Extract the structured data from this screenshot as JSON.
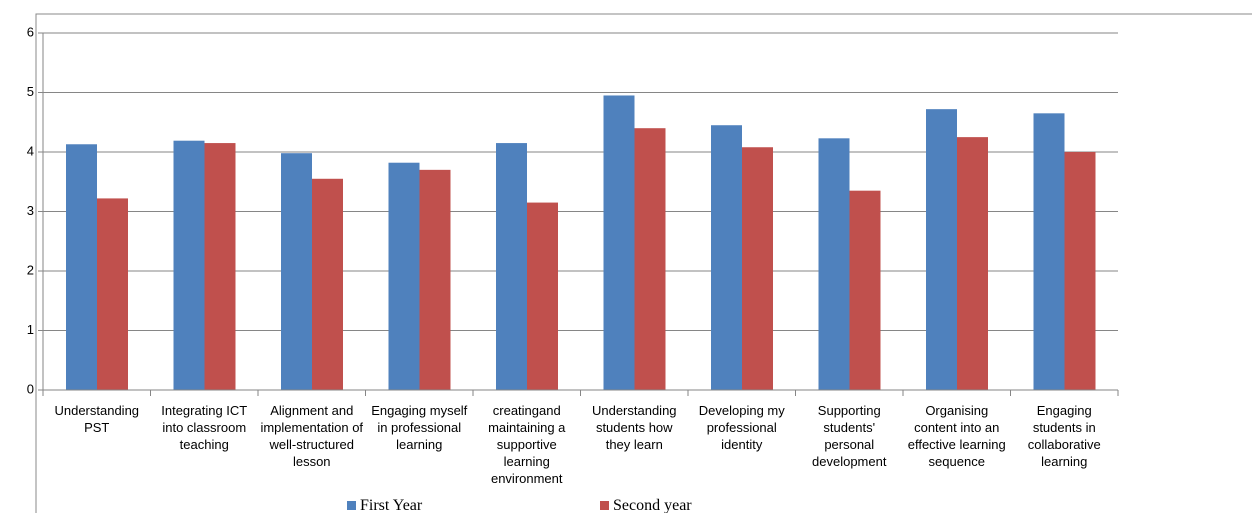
{
  "chart_data": {
    "type": "bar",
    "categories": [
      "Understanding PST",
      "Integrating ICT into classroom teaching",
      "Alignment and implementation of well-structured lesson",
      "Engaging myself in professional learning",
      "creatingand maintaining a supportive learning environment",
      "Understanding students how they learn",
      "Developing my professional identity",
      "Supporting students' personal development",
      "Organising content into an effective learning sequence",
      "Engaging students in collaborative learning"
    ],
    "series": [
      {
        "name": "First Year",
        "color": "#4f81bd",
        "values": [
          4.13,
          4.19,
          3.98,
          3.82,
          4.15,
          4.95,
          4.45,
          4.23,
          4.72,
          4.65
        ]
      },
      {
        "name": "Second year",
        "color": "#c0504d",
        "values": [
          3.22,
          4.15,
          3.55,
          3.7,
          3.15,
          4.4,
          4.08,
          3.35,
          4.25,
          4.0
        ]
      }
    ],
    "ylim": [
      0,
      6
    ],
    "yticks": [
      0,
      1,
      2,
      3,
      4,
      5,
      6
    ],
    "grid": true,
    "legend": "bottom"
  }
}
